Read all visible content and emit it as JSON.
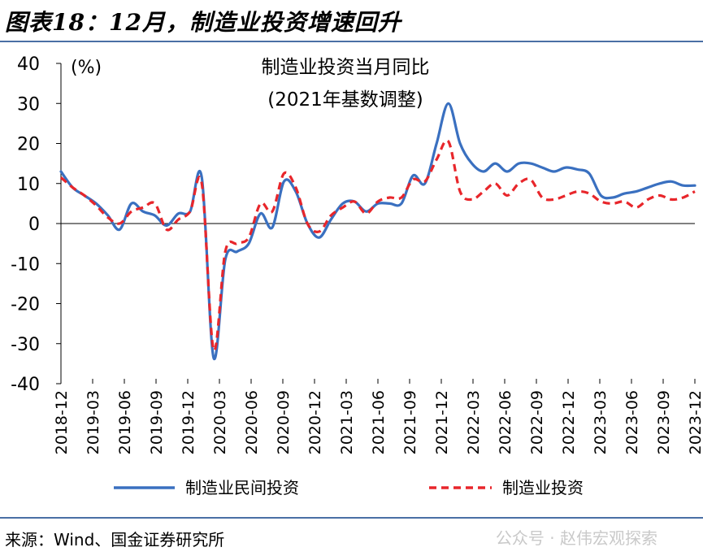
{
  "header": {
    "title": "图表18：12月，制造业投资增速回升"
  },
  "footer": {
    "source": "来源：Wind、国金证券研究所",
    "watermark": "公众号 · 赵伟宏观探索"
  },
  "colors": {
    "series1": "#3a70c0",
    "series2": "#e8262b",
    "rule": "#4a6fa5"
  },
  "chart_data": {
    "type": "line",
    "title_line1": "制造业投资当月同比",
    "title_line2": "(2021年基数调整)",
    "unit_label": "(%)",
    "ylim": [
      -40,
      40
    ],
    "yticks": [
      40,
      30,
      20,
      10,
      0,
      -10,
      -20,
      -30,
      -40
    ],
    "x_tick_labels": [
      "2018-12",
      "2019-03",
      "2019-06",
      "2019-09",
      "2019-12",
      "2020-03",
      "2020-06",
      "2020-09",
      "2020-12",
      "2021-03",
      "2021-06",
      "2021-09",
      "2021-12",
      "2022-03",
      "2022-06",
      "2022-09",
      "2022-12",
      "2023-03",
      "2023-06",
      "2023-09",
      "2023-12"
    ],
    "legend_position": "bottom",
    "series": [
      {
        "name": "制造业民间投资",
        "style": "solid",
        "values": [
          13,
          9,
          7,
          5,
          2,
          -1.5,
          5,
          3,
          2,
          -0.5,
          2.5,
          3,
          11.5,
          -33.5,
          -9,
          -7,
          -5,
          2.5,
          -1,
          10.5,
          8,
          0,
          -3.5,
          1,
          5,
          5.5,
          3,
          5,
          5,
          5,
          12,
          10,
          20,
          30,
          20,
          15,
          13,
          15,
          13,
          15,
          15,
          14,
          13,
          14,
          13.5,
          12.5,
          7,
          6.5,
          7.5,
          8,
          9,
          10,
          10.5,
          9.5,
          9.5
        ]
      },
      {
        "name": "制造业投资",
        "style": "dashed",
        "values": [
          11.5,
          9,
          7,
          4.5,
          1.5,
          0,
          3,
          4,
          5,
          -1.5,
          1,
          3,
          10,
          -31.5,
          -7,
          -5,
          -3.5,
          5,
          3,
          12.5,
          9,
          0,
          -2,
          2,
          4,
          5.5,
          2.5,
          5.5,
          6.5,
          6.5,
          11,
          10.5,
          16,
          20.5,
          8,
          6,
          8,
          10,
          7,
          10,
          11,
          6.5,
          6,
          7,
          8,
          7.5,
          5.5,
          5,
          5.5,
          4,
          6,
          7,
          6,
          6.5,
          8
        ]
      }
    ]
  }
}
